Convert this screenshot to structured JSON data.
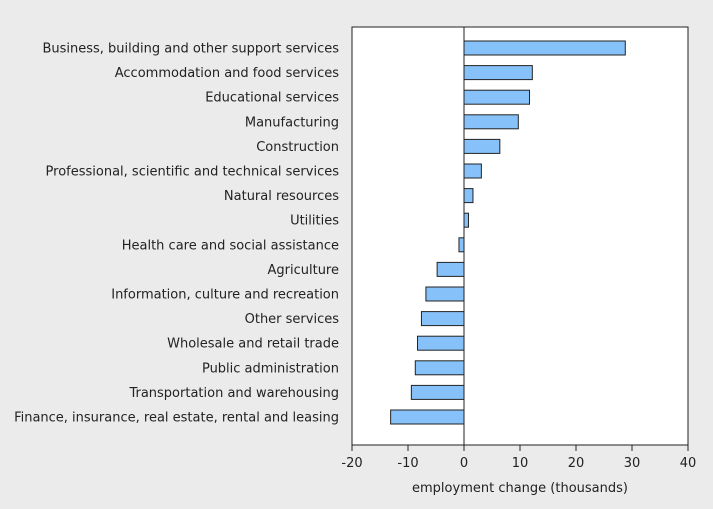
{
  "chart_data": {
    "type": "bar",
    "orientation": "horizontal",
    "xlabel": "employment change (thousands)",
    "ylabel": "",
    "title": "",
    "xlim": [
      -20,
      40
    ],
    "xticks": [
      -20,
      -10,
      0,
      10,
      20,
      30,
      40
    ],
    "grid": false,
    "legend": "none",
    "categories": [
      "Business, building and other support services",
      "Accommodation and food services",
      "Educational services",
      "Manufacturing",
      "Construction",
      "Professional, scientific and technical services",
      "Natural resources",
      "Utilities",
      "Health care and social assistance",
      "Agriculture",
      "Information, culture and recreation",
      "Other services",
      "Wholesale and retail trade",
      "Public administration",
      "Transportation and warehousing",
      "Finance, insurance, real estate, rental and leasing"
    ],
    "values": [
      28.8,
      12.2,
      11.7,
      9.7,
      6.4,
      3.1,
      1.6,
      0.8,
      -0.9,
      -4.8,
      -6.8,
      -7.6,
      -8.3,
      -8.7,
      -9.4,
      -13.1
    ]
  },
  "colors": {
    "background": "#ebebeb",
    "plot_background": "#ffffff",
    "bar_fill": "#87c1f9",
    "bar_stroke": "#222222",
    "axis": "#222222"
  }
}
